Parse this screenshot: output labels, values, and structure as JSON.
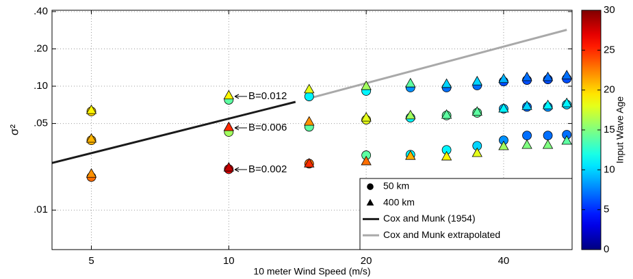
{
  "chart_data": {
    "type": "scatter",
    "xlabel": "10 meter Wind Speed (m/s)",
    "ylabel": "σ²",
    "xscale": "log",
    "yscale": "log",
    "grid": true,
    "xlim": [
      4.1,
      56.5
    ],
    "xticks": [
      5,
      10,
      20,
      40
    ],
    "ylim": [
      0.0048,
      0.41
    ],
    "yticks": [
      {
        "value": 0.01,
        "label": ".01"
      },
      {
        "value": 0.05,
        "label": ".05"
      },
      {
        "value": 0.1,
        "label": ".10"
      },
      {
        "value": 0.2,
        "label": ".20"
      },
      {
        "value": 0.4,
        "label": ".40"
      }
    ],
    "colormap": "jet",
    "colorbar": {
      "label": "Input Wave Age",
      "lim": [
        0,
        30
      ],
      "ticks": [
        0,
        5,
        10,
        15,
        20,
        25,
        30
      ]
    },
    "legend": "lower right",
    "series": [
      {
        "name": "50 km",
        "marker": "circle",
        "color": "#000000",
        "x": [
          5,
          5,
          5,
          10,
          10,
          10,
          15,
          15,
          15,
          20,
          20,
          20,
          25,
          25,
          25,
          30,
          30,
          30,
          35,
          35,
          35,
          40,
          40,
          40,
          45,
          45,
          45,
          50,
          50,
          50,
          55,
          55,
          55
        ],
        "values": [
          0.0625,
          0.0366,
          0.0185,
          0.0776,
          0.0427,
          0.0214,
          0.0826,
          0.047,
          0.0237,
          0.0915,
          0.0536,
          0.0277,
          0.0975,
          0.0557,
          0.028,
          0.0975,
          0.058,
          0.0306,
          0.1013,
          0.061,
          0.033,
          0.109,
          0.0658,
          0.0366,
          0.112,
          0.068,
          0.04,
          0.1135,
          0.068,
          0.04,
          0.115,
          0.071,
          0.0406
        ],
        "color_values": [
          20,
          21,
          23,
          14,
          16,
          27,
          11,
          14,
          23,
          11,
          18,
          14,
          8,
          11,
          11,
          7,
          14,
          11,
          7,
          14,
          10,
          6,
          9,
          8,
          6,
          7,
          7,
          6,
          8,
          7,
          6,
          10,
          7
        ]
      },
      {
        "name": "400 km",
        "marker": "triangle",
        "color": "#000000",
        "x": [
          5,
          5,
          5,
          10,
          10,
          10,
          15,
          15,
          15,
          20,
          20,
          20,
          25,
          25,
          25,
          30,
          30,
          30,
          35,
          35,
          35,
          40,
          40,
          40,
          45,
          45,
          45,
          50,
          50,
          50,
          55,
          55,
          55
        ],
        "values": [
          0.064,
          0.0376,
          0.0196,
          0.084,
          0.0466,
          0.022,
          0.094,
          0.0516,
          0.0237,
          0.1,
          0.0557,
          0.0247,
          0.105,
          0.058,
          0.0273,
          0.104,
          0.0586,
          0.027,
          0.109,
          0.062,
          0.0288,
          0.114,
          0.0658,
          0.0327,
          0.118,
          0.069,
          0.0335,
          0.118,
          0.07,
          0.0335,
          0.122,
          0.0727,
          0.0362
        ],
        "color_values": [
          19,
          21,
          22,
          19,
          25,
          28,
          18,
          22,
          25,
          16,
          18,
          23,
          14,
          16,
          21,
          10,
          14,
          19,
          10,
          14,
          18,
          9,
          11,
          16,
          7,
          10,
          15,
          7,
          11,
          15,
          7,
          11,
          14
        ]
      },
      {
        "name": "Cox and Munk (1954)",
        "marker": "line",
        "color": "#1a1a1a",
        "x": [
          4.1,
          14
        ],
        "values": [
          0.024,
          0.0747
        ]
      },
      {
        "name": "Cox and Munk extrapolated",
        "marker": "line",
        "color": "#a9a9a9",
        "x": [
          15,
          55
        ],
        "values": [
          0.0798,
          0.285
        ]
      }
    ],
    "annotations": [
      "B=0.012",
      "B=0.006",
      "B=0.002"
    ]
  }
}
